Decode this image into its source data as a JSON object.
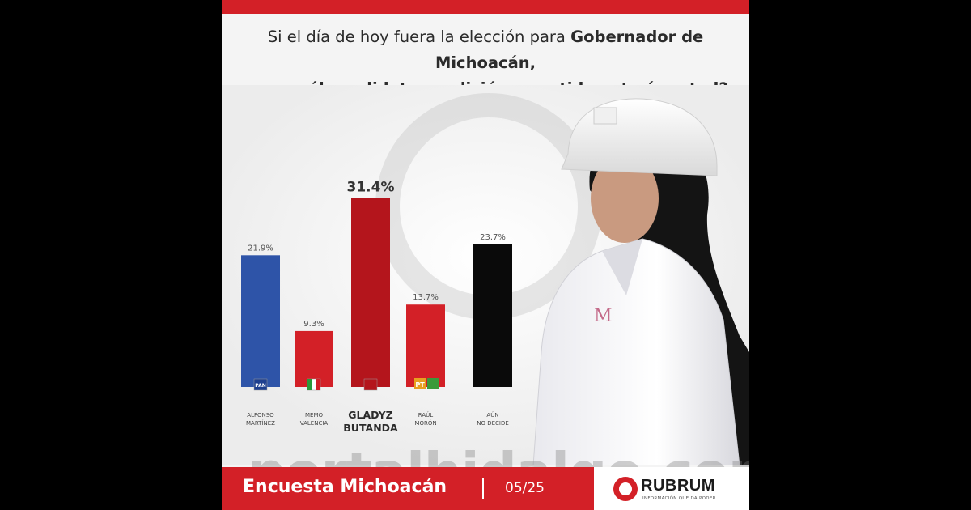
{
  "question": {
    "line1_normal": "Si el día de hoy fuera la elección para ",
    "line1_bold": "Gobernador de Michoacán,",
    "line2_bold": "¿por cuál candidato, coalición o partido votaría usted?"
  },
  "chart_data": {
    "type": "bar",
    "categories": [
      "ALFONSO MARTÍNEZ",
      "MEMO VALENCIA",
      "GLADYZ BUTANDA",
      "RAÚL MORÓN",
      "AÚN NO DECIDE"
    ],
    "category_lines": [
      [
        "ALFONSO",
        "MARTÍNEZ"
      ],
      [
        "MEMO",
        "VALENCIA"
      ],
      [
        "GLADYZ",
        "BUTANDA"
      ],
      [
        "RAÚL",
        "MORÓN"
      ],
      [
        "AÚN",
        "NO DECIDE"
      ]
    ],
    "values": [
      21.9,
      9.3,
      31.4,
      13.7,
      23.7
    ],
    "value_labels": [
      "21.9%",
      "9.3%",
      "31.4%",
      "13.7%",
      "23.7%"
    ],
    "colors": [
      "#2e54a8",
      "#d32027",
      "#b4151c",
      "#d32027",
      "#0a0a0a"
    ],
    "highlight_index": 2,
    "party_icons": [
      "pan-logo-icon",
      "pri-logo-icon",
      "morena-logo-icon",
      "pt-pvem-logo-icon",
      ""
    ],
    "party_icon_text": [
      "PAN",
      "",
      "",
      "PT",
      ""
    ],
    "ylim": [
      0,
      35
    ],
    "grid": false,
    "title": "",
    "xlabel": "",
    "ylabel": ""
  },
  "watermark": "portalhidalgo.com",
  "footer": {
    "title": "Encuesta Michoacán",
    "date": "05/25",
    "brand": "RUBRUM",
    "brand_tagline": "INFORMACIÓN QUE DA PODER"
  }
}
